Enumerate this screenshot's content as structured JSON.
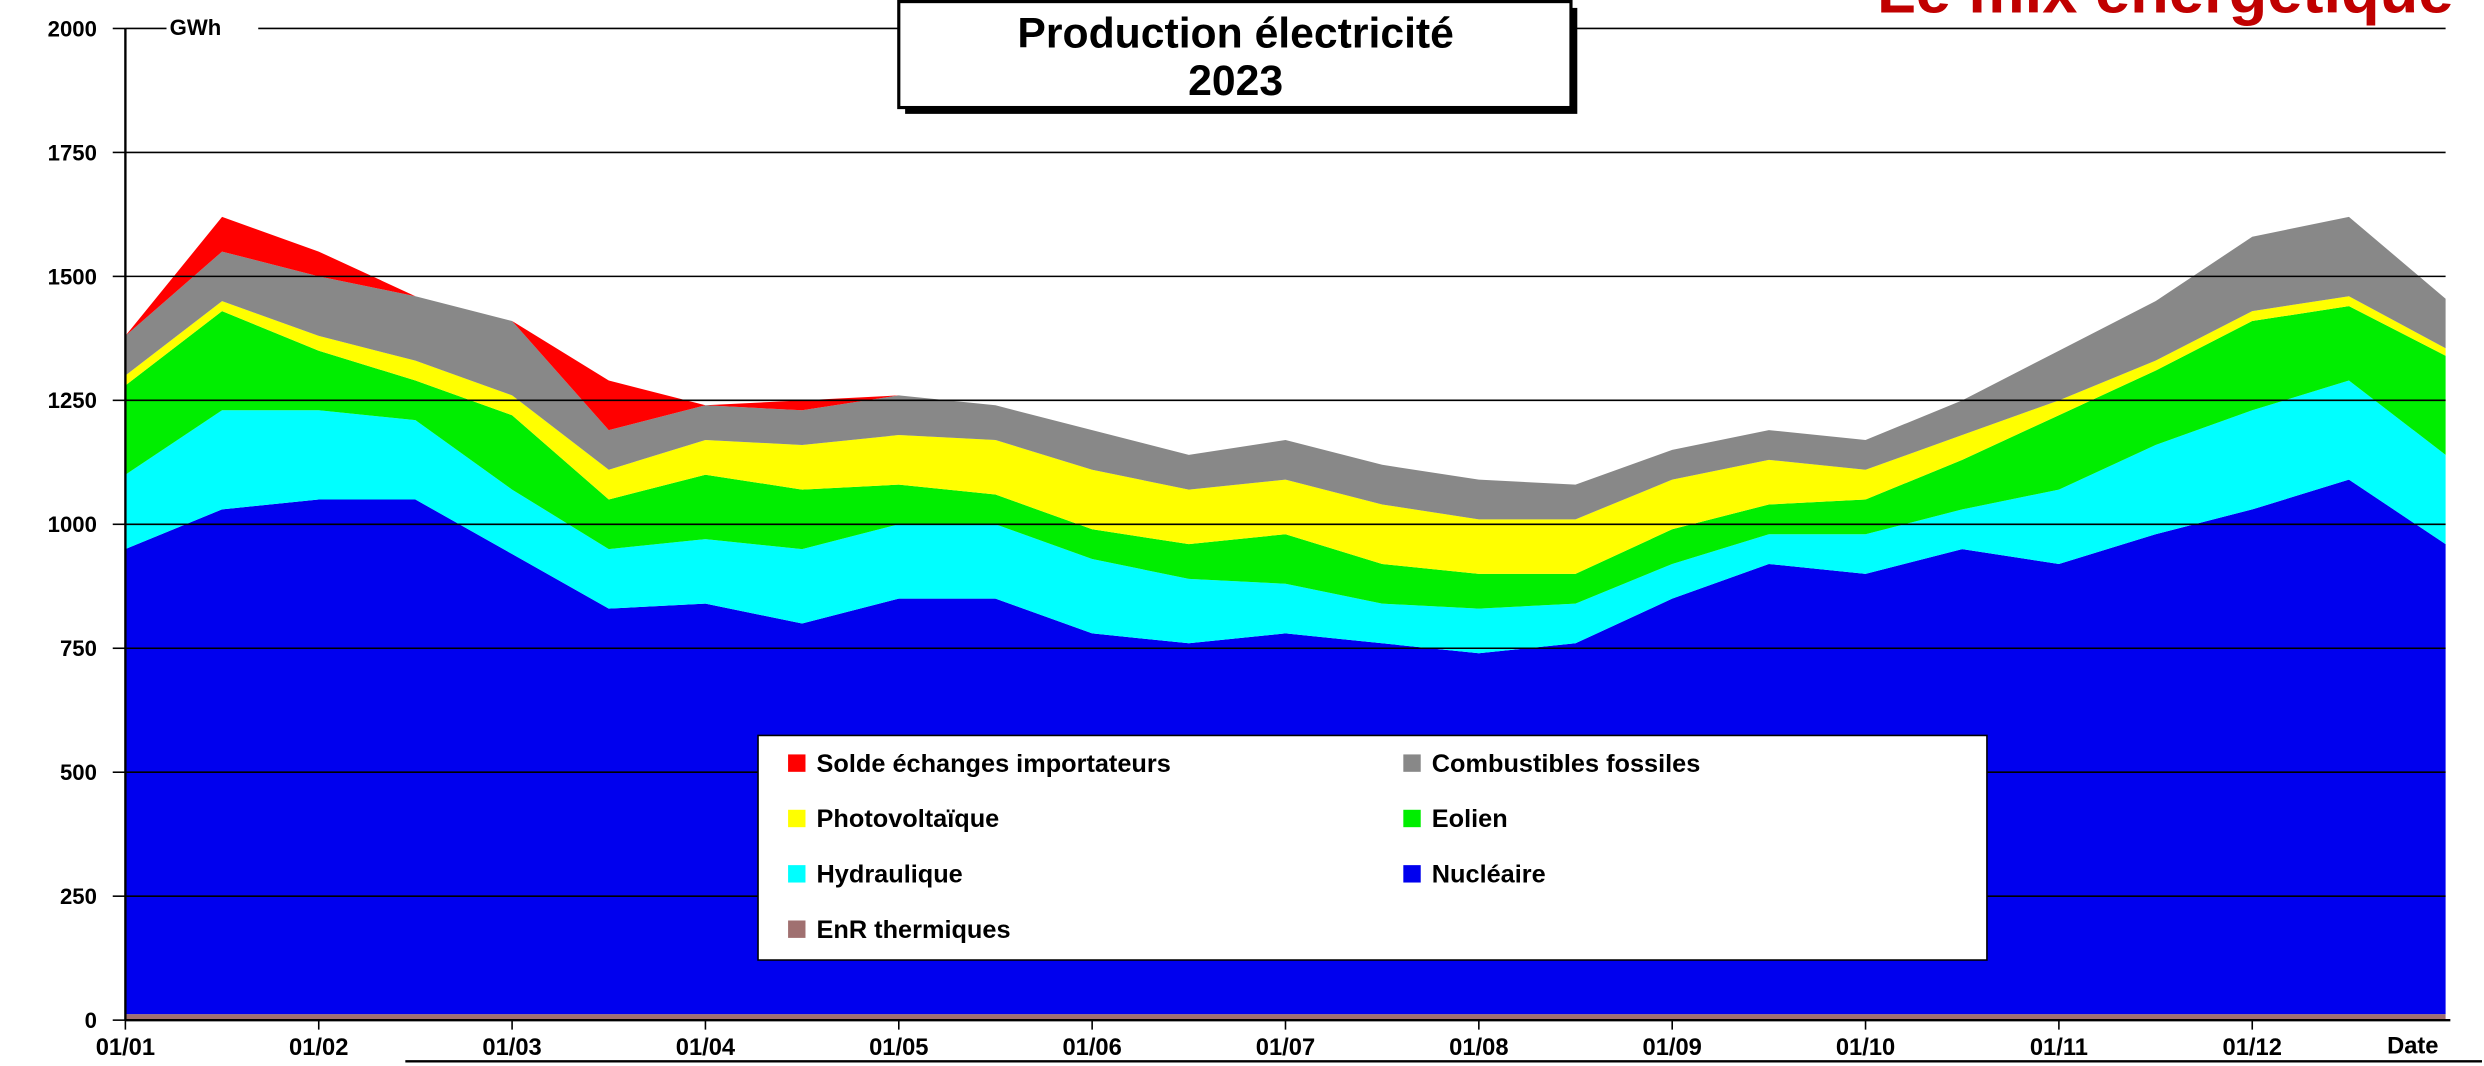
{
  "chart_data": {
    "type": "stacked_area",
    "title": "Production électricité",
    "subtitle": "2023",
    "corner_title": "Le mix énergétique",
    "y_label": "GWh",
    "x_label": "Date",
    "x": [
      "01/01",
      "15/01",
      "01/02",
      "15/02",
      "01/03",
      "15/03",
      "01/04",
      "15/04",
      "01/05",
      "15/05",
      "01/06",
      "15/06",
      "01/07",
      "15/07",
      "01/08",
      "15/08",
      "01/09",
      "15/09",
      "01/10",
      "15/10",
      "01/11",
      "15/11",
      "01/12",
      "15/12",
      "31/12"
    ],
    "xticks": [
      "01/01",
      "01/02",
      "01/03",
      "01/04",
      "01/05",
      "01/06",
      "01/07",
      "01/08",
      "01/09",
      "01/10",
      "01/11",
      "01/12"
    ],
    "ylim": [
      0,
      2000
    ],
    "yticks": [
      0,
      250,
      500,
      750,
      1000,
      1250,
      1500,
      1750,
      2000
    ],
    "grid": true,
    "legend": "center",
    "series": [
      {
        "name": "Solde échanges importateurs",
        "color": "#ff0000",
        "values": [
          0,
          70,
          50,
          0,
          0,
          100,
          0,
          20,
          0,
          0,
          0,
          0,
          0,
          0,
          0,
          0,
          0,
          0,
          0,
          0,
          0,
          0,
          0,
          0,
          0
        ]
      },
      {
        "name": "Combustibles fossiles",
        "color": "#888888",
        "values": [
          80,
          100,
          120,
          130,
          150,
          80,
          70,
          70,
          80,
          70,
          80,
          70,
          80,
          80,
          80,
          70,
          60,
          60,
          60,
          70,
          100,
          120,
          150,
          160,
          100
        ]
      },
      {
        "name": "Photovoltaïque",
        "color": "#ffff00",
        "values": [
          20,
          20,
          30,
          40,
          40,
          60,
          70,
          90,
          100,
          110,
          120,
          110,
          110,
          120,
          110,
          110,
          100,
          90,
          60,
          50,
          30,
          20,
          20,
          20,
          15
        ]
      },
      {
        "name": "Eolien",
        "color": "#00ee00",
        "values": [
          180,
          200,
          120,
          80,
          150,
          100,
          130,
          120,
          80,
          60,
          60,
          70,
          100,
          80,
          70,
          60,
          70,
          60,
          70,
          100,
          150,
          150,
          180,
          150,
          200
        ]
      },
      {
        "name": "Hydraulique",
        "color": "#00ffff",
        "values": [
          150,
          200,
          180,
          160,
          130,
          120,
          130,
          150,
          150,
          150,
          150,
          130,
          100,
          80,
          90,
          80,
          70,
          60,
          80,
          80,
          150,
          180,
          200,
          200,
          180
        ]
      },
      {
        "name": "Nucléaire",
        "color": "#0000ee",
        "values": [
          938,
          1018,
          1038,
          1038,
          928,
          818,
          828,
          788,
          838,
          838,
          768,
          748,
          768,
          748,
          728,
          748,
          838,
          908,
          888,
          938,
          908,
          968,
          1018,
          1078,
          948
        ]
      },
      {
        "name": "EnR thermiques",
        "color": "#a07070",
        "values": [
          12,
          12,
          12,
          12,
          12,
          12,
          12,
          12,
          12,
          12,
          12,
          12,
          12,
          12,
          12,
          12,
          12,
          12,
          12,
          12,
          12,
          12,
          12,
          12,
          12
        ]
      }
    ]
  }
}
